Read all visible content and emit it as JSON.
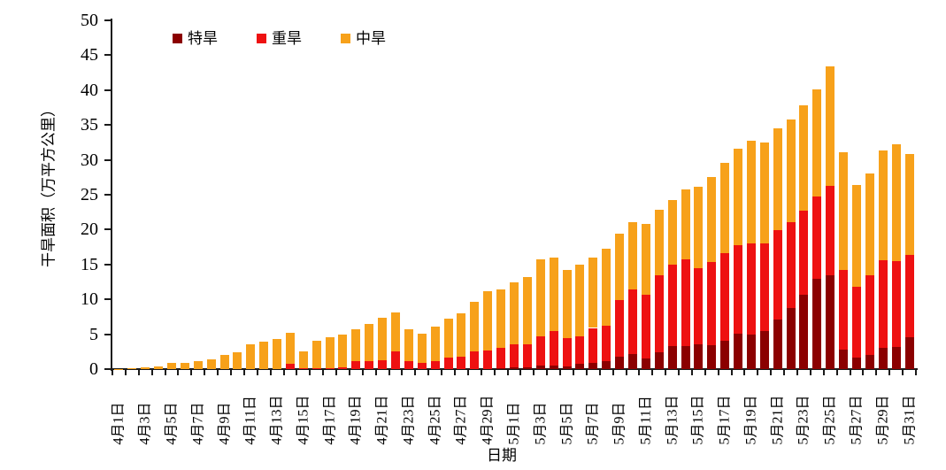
{
  "chart_data": {
    "type": "bar",
    "stacked": true,
    "title": "",
    "xlabel": "日期",
    "ylabel": "干旱面积（万平方公里）",
    "ylim": [
      0,
      50
    ],
    "yticks": [
      0,
      5,
      10,
      15,
      20,
      25,
      30,
      35,
      40,
      45,
      50
    ],
    "x_label_every": 2,
    "legend_position": "top-left",
    "grid": false,
    "categories": [
      "4月1日",
      "4月2日",
      "4月3日",
      "4月4日",
      "4月5日",
      "4月6日",
      "4月7日",
      "4月8日",
      "4月9日",
      "4月10日",
      "4月11日",
      "4月12日",
      "4月13日",
      "4月14日",
      "4月15日",
      "4月16日",
      "4月17日",
      "4月18日",
      "4月19日",
      "4月20日",
      "4月21日",
      "4月22日",
      "4月23日",
      "4月24日",
      "4月25日",
      "4月26日",
      "4月27日",
      "4月28日",
      "4月29日",
      "4月30日",
      "5月1日",
      "5月2日",
      "5月3日",
      "5月4日",
      "5月5日",
      "5月6日",
      "5月7日",
      "5月8日",
      "5月9日",
      "5月10日",
      "5月11日",
      "5月12日",
      "5月13日",
      "5月14日",
      "5月15日",
      "5月16日",
      "5月17日",
      "5月18日",
      "5月19日",
      "5月20日",
      "5月21日",
      "5月22日",
      "5月23日",
      "5月24日",
      "5月25日",
      "5月26日",
      "5月27日",
      "5月28日",
      "5月29日",
      "5月30日",
      "5月31日"
    ],
    "series": [
      {
        "name": "特旱",
        "color": "#8B0000",
        "values": [
          0,
          0,
          0,
          0,
          0,
          0,
          0,
          0,
          0,
          0,
          0,
          0,
          0,
          0,
          0,
          0,
          0,
          0,
          0,
          0,
          0,
          0,
          0,
          0,
          0,
          0,
          0,
          0,
          0,
          0.1,
          0.2,
          0.3,
          0.5,
          0.55,
          0.4,
          0.75,
          0.95,
          1.2,
          1.8,
          2.2,
          1.5,
          2.4,
          3.3,
          3.3,
          3.5,
          3.4,
          4.1,
          5.1,
          4.9,
          5.5,
          7.1,
          8.8,
          10.6,
          13,
          13.5,
          2.8,
          1.6,
          2,
          3,
          3.2,
          4.6
        ]
      },
      {
        "name": "重旱",
        "color": "#EE1111",
        "values": [
          0,
          0,
          0,
          0,
          0,
          0,
          0,
          0,
          0,
          0,
          0,
          0,
          0,
          0.7,
          0.15,
          0.1,
          0.15,
          0.3,
          1.2,
          1.2,
          1.3,
          2.6,
          1.15,
          0.9,
          1.15,
          1.6,
          1.8,
          2.5,
          2.65,
          3,
          3.4,
          3.2,
          4.25,
          4.85,
          4.05,
          3.95,
          4.95,
          5,
          8.1,
          9.2,
          9.2,
          11.1,
          11.7,
          12.4,
          11,
          12,
          12.5,
          12.7,
          13.1,
          12.5,
          12.8,
          12.3,
          12.1,
          11.7,
          12.8,
          11.4,
          10.2,
          11.5,
          12.6,
          12.3,
          11.8
        ]
      },
      {
        "name": "中旱",
        "color": "#F7A11A",
        "values": [
          0.05,
          0.1,
          0.25,
          0.4,
          0.85,
          0.9,
          1.2,
          1.4,
          2,
          2.4,
          3.5,
          3.9,
          4.3,
          4.5,
          2.45,
          4,
          4.45,
          4.7,
          4.5,
          5.3,
          6.1,
          5.5,
          4.55,
          4.2,
          4.95,
          5.6,
          6.2,
          7.1,
          8.55,
          8.3,
          8.9,
          9.7,
          10.95,
          10.6,
          9.75,
          10.3,
          10.1,
          11,
          9.5,
          9.7,
          10.1,
          9.3,
          9.3,
          10.1,
          11.6,
          12.1,
          13,
          13.8,
          14.7,
          14.5,
          14.6,
          14.7,
          15.1,
          15.4,
          17.1,
          16.9,
          14.6,
          14.6,
          15.7,
          16.7,
          14.4
        ]
      }
    ]
  },
  "layout_note_values_unit": "万平方公里"
}
